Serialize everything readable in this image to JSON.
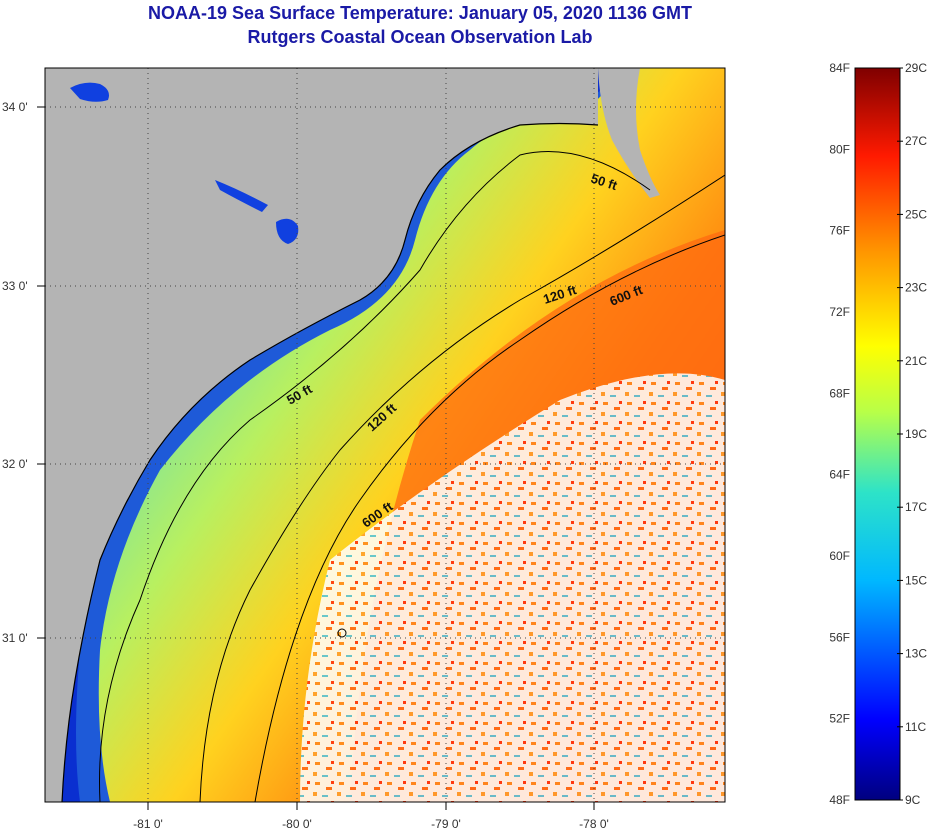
{
  "title": "NOAA-19 Sea Surface Temperature:  January 05, 2020 1136 GMT",
  "subtitle": "Rutgers Coastal Ocean Observation Lab",
  "map": {
    "lon_ticks": [
      "-81 0'",
      "-80 0'",
      "-79 0'",
      "-78 0'"
    ],
    "lat_ticks": [
      "34 0'",
      "33 0'",
      "32 0'",
      "31 0'"
    ],
    "contours": [
      "50 ft",
      "50 ft",
      "120 ft",
      "120 ft",
      "600 ft",
      "600 ft"
    ],
    "colors": {
      "land": "#b4b4b4",
      "cloud": "#ffffff",
      "coast": "#000000"
    }
  },
  "colorbar": {
    "fahrenheit": [
      "84F",
      "80F",
      "76F",
      "72F",
      "68F",
      "64F",
      "60F",
      "56F",
      "52F",
      "48F"
    ],
    "celsius": [
      "29C",
      "27C",
      "25C",
      "23C",
      "21C",
      "19C",
      "17C",
      "15C",
      "13C",
      "11C",
      "9C"
    ],
    "range_f": [
      48,
      84
    ],
    "range_c": [
      9,
      29
    ]
  }
}
